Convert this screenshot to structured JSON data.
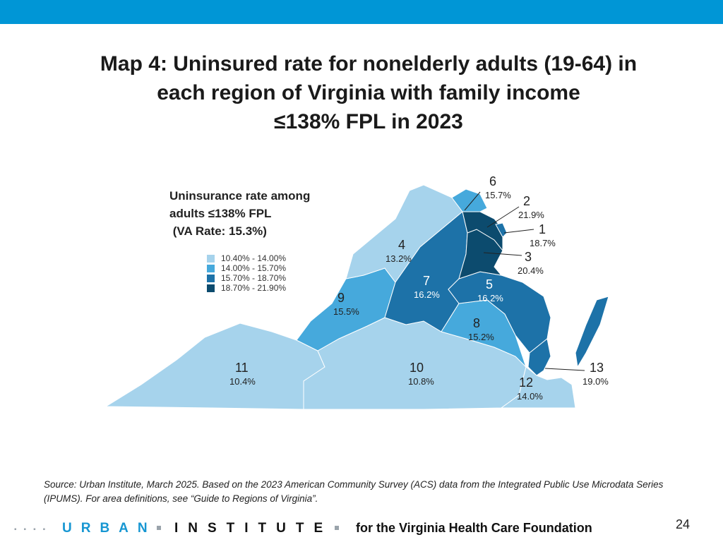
{
  "title_lines": [
    "Map 4: Uninsured rate for nonelderly adults (19-64) in",
    "each region of Virginia with family income",
    "≤138% FPL in 2023"
  ],
  "legend": {
    "title_lines": [
      "Uninsurance rate among",
      "adults ≤138% FPL",
      " (VA Rate: 15.3%)"
    ],
    "items": [
      {
        "label": "10.40% - 14.00%",
        "color": "#a6d3ec"
      },
      {
        "label": "14.00% - 15.70%",
        "color": "#46a9dc"
      },
      {
        "label": "15.70% - 18.70%",
        "color": "#1d72a8"
      },
      {
        "label": "18.70% - 21.90%",
        "color": "#0c4b6e"
      }
    ]
  },
  "regions": [
    {
      "id": "1",
      "rate": "18.7%",
      "color": "#1d72a8"
    },
    {
      "id": "2",
      "rate": "21.9%",
      "color": "#0c4b6e"
    },
    {
      "id": "3",
      "rate": "20.4%",
      "color": "#0c4b6e"
    },
    {
      "id": "4",
      "rate": "13.2%",
      "color": "#a6d3ec"
    },
    {
      "id": "5",
      "rate": "16.2%",
      "color": "#1d72a8"
    },
    {
      "id": "6",
      "rate": "15.7%",
      "color": "#46a9dc"
    },
    {
      "id": "7",
      "rate": "16.2%",
      "color": "#1d72a8"
    },
    {
      "id": "8",
      "rate": "15.2%",
      "color": "#46a9dc"
    },
    {
      "id": "9",
      "rate": "15.5%",
      "color": "#46a9dc"
    },
    {
      "id": "10",
      "rate": "10.8%",
      "color": "#a6d3ec"
    },
    {
      "id": "11",
      "rate": "10.4%",
      "color": "#a6d3ec"
    },
    {
      "id": "12",
      "rate": "14.0%",
      "color": "#a6d3ec"
    },
    {
      "id": "13",
      "rate": "19.0%",
      "color": "#1d72a8"
    }
  ],
  "source": "Source: Urban Institute, March 2025. Based on the 2023 American Community Survey (ACS) data from the Integrated Public Use Microdata Series (IPUMS). For area definitions, see “Guide to Regions of Virginia”.",
  "footer": {
    "urban": "URBAN",
    "institute": "INSTITUTE",
    "foundation": "for the Virginia Health Care Foundation",
    "page": "24"
  },
  "colors": {
    "top_bar": "#0096d6",
    "urban_blue": "#1696d2"
  }
}
